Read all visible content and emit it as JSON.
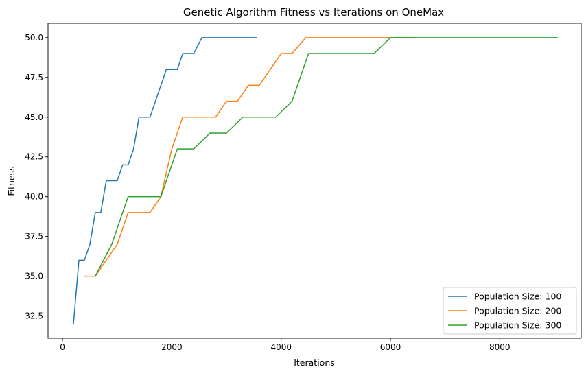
{
  "chart_data": {
    "type": "line",
    "title": "Genetic Algorithm Fitness vs Iterations on OneMax",
    "xlabel": "Iterations",
    "ylabel": "Fitness",
    "xlim": [
      -265,
      9490
    ],
    "ylim": [
      31.1,
      50.9
    ],
    "xticks": [
      0,
      2000,
      4000,
      6000,
      8000
    ],
    "xtick_labels": [
      "0",
      "2000",
      "4000",
      "6000",
      "8000"
    ],
    "yticks": [
      32.5,
      35.0,
      37.5,
      40.0,
      42.5,
      45.0,
      47.5,
      50.0
    ],
    "ytick_labels": [
      "32.5",
      "35.0",
      "37.5",
      "40.0",
      "42.5",
      "45.0",
      "47.5",
      "50.0"
    ],
    "grid": false,
    "legend_position": "lower-right",
    "series": [
      {
        "name": "Population Size: 100",
        "color": "#1f77b4",
        "points": [
          [
            200,
            32
          ],
          [
            300,
            36
          ],
          [
            400,
            36
          ],
          [
            500,
            37
          ],
          [
            600,
            39
          ],
          [
            700,
            39
          ],
          [
            800,
            41
          ],
          [
            1000,
            41
          ],
          [
            1100,
            42
          ],
          [
            1200,
            42
          ],
          [
            1300,
            43
          ],
          [
            1400,
            45
          ],
          [
            1600,
            45
          ],
          [
            1900,
            48
          ],
          [
            2100,
            48
          ],
          [
            2200,
            49
          ],
          [
            2400,
            49
          ],
          [
            2550,
            50
          ],
          [
            3550,
            50
          ]
        ]
      },
      {
        "name": "Population Size: 200",
        "color": "#ff7f0e",
        "points": [
          [
            400,
            35
          ],
          [
            600,
            35
          ],
          [
            1000,
            37
          ],
          [
            1200,
            39
          ],
          [
            1600,
            39
          ],
          [
            1800,
            40
          ],
          [
            2000,
            43
          ],
          [
            2200,
            45
          ],
          [
            2800,
            45
          ],
          [
            3000,
            46
          ],
          [
            3200,
            46
          ],
          [
            3400,
            47
          ],
          [
            3600,
            47
          ],
          [
            4000,
            49
          ],
          [
            4200,
            49
          ],
          [
            4450,
            50
          ],
          [
            6450,
            50
          ]
        ]
      },
      {
        "name": "Population Size: 300",
        "color": "#2ca02c",
        "points": [
          [
            600,
            35
          ],
          [
            900,
            37
          ],
          [
            1200,
            40
          ],
          [
            1800,
            40
          ],
          [
            2100,
            43
          ],
          [
            2400,
            43
          ],
          [
            2700,
            44
          ],
          [
            3000,
            44
          ],
          [
            3300,
            45
          ],
          [
            3900,
            45
          ],
          [
            4200,
            46
          ],
          [
            4500,
            49
          ],
          [
            5700,
            49
          ],
          [
            6000,
            50
          ],
          [
            9050,
            50
          ]
        ]
      }
    ]
  }
}
